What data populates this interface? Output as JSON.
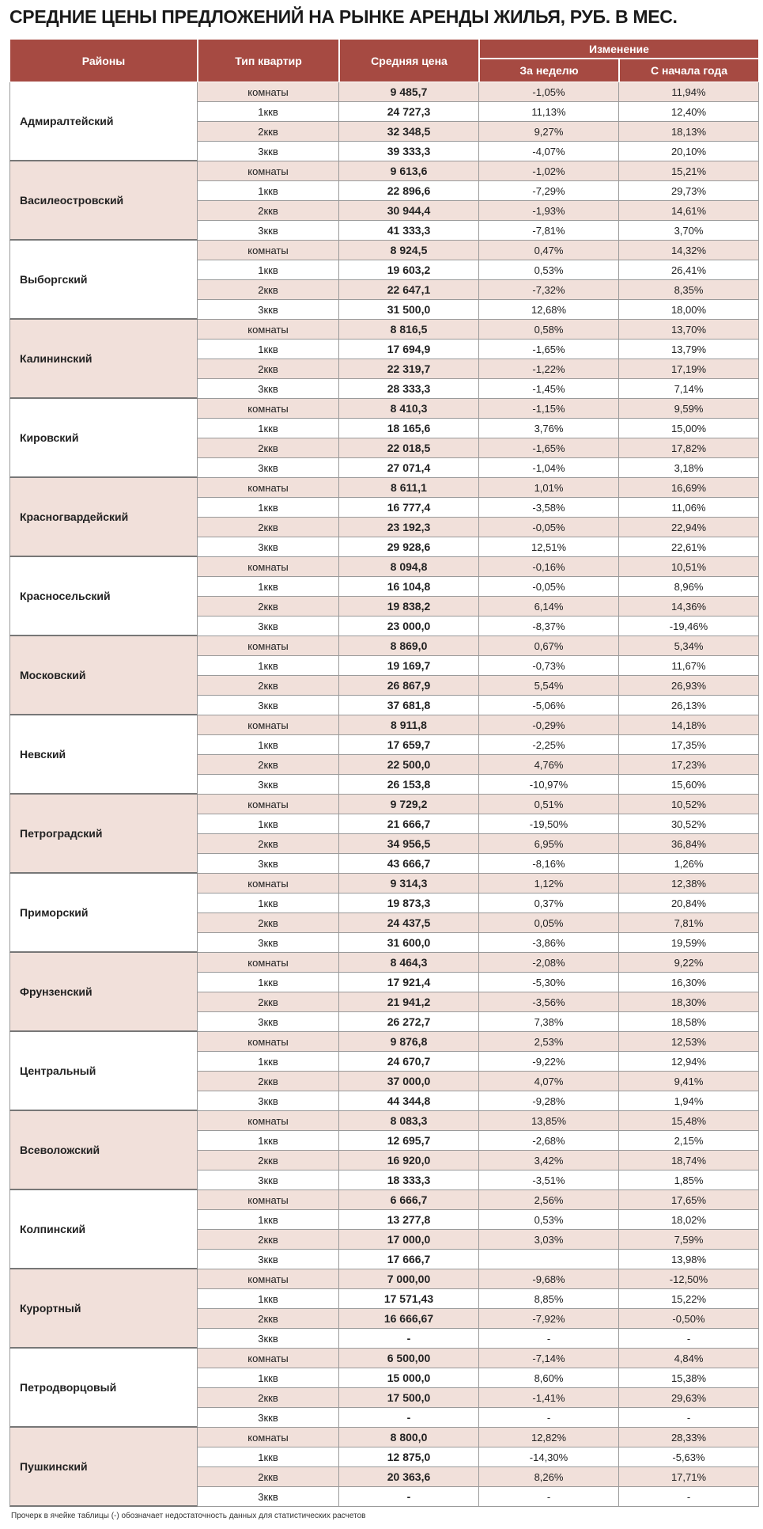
{
  "title": "СРЕДНИЕ ЦЕНЫ ПРЕДЛОЖЕНИЙ НА РЫНКЕ АРЕНДЫ ЖИЛЬЯ, РУБ. В МЕС.",
  "header": {
    "district": "Районы",
    "type": "Тип квартир",
    "price": "Средняя цена",
    "change": "Изменение",
    "week": "За неделю",
    "year": "С начала года"
  },
  "districts": [
    {
      "name": "Адмиралтейский",
      "rows": [
        {
          "type": "комнаты",
          "price": "9 485,7",
          "week": "-1,05%",
          "year": "11,94%"
        },
        {
          "type": "1ккв",
          "price": "24 727,3",
          "week": "11,13%",
          "year": "12,40%"
        },
        {
          "type": "2ккв",
          "price": "32 348,5",
          "week": "9,27%",
          "year": "18,13%"
        },
        {
          "type": "3ккв",
          "price": "39 333,3",
          "week": "-4,07%",
          "year": "20,10%"
        }
      ]
    },
    {
      "name": "Василеостровский",
      "rows": [
        {
          "type": "комнаты",
          "price": "9 613,6",
          "week": "-1,02%",
          "year": "15,21%"
        },
        {
          "type": "1ккв",
          "price": "22 896,6",
          "week": "-7,29%",
          "year": "29,73%"
        },
        {
          "type": "2ккв",
          "price": "30 944,4",
          "week": "-1,93%",
          "year": "14,61%"
        },
        {
          "type": "3ккв",
          "price": "41 333,3",
          "week": "-7,81%",
          "year": "3,70%"
        }
      ]
    },
    {
      "name": "Выборгский",
      "rows": [
        {
          "type": "комнаты",
          "price": "8 924,5",
          "week": "0,47%",
          "year": "14,32%"
        },
        {
          "type": "1ккв",
          "price": "19 603,2",
          "week": "0,53%",
          "year": "26,41%"
        },
        {
          "type": "2ккв",
          "price": "22 647,1",
          "week": "-7,32%",
          "year": "8,35%"
        },
        {
          "type": "3ккв",
          "price": "31 500,0",
          "week": "12,68%",
          "year": "18,00%"
        }
      ]
    },
    {
      "name": "Калининский",
      "rows": [
        {
          "type": "комнаты",
          "price": "8 816,5",
          "week": "0,58%",
          "year": "13,70%"
        },
        {
          "type": "1ккв",
          "price": "17 694,9",
          "week": "-1,65%",
          "year": "13,79%"
        },
        {
          "type": "2ккв",
          "price": "22 319,7",
          "week": "-1,22%",
          "year": "17,19%"
        },
        {
          "type": "3ккв",
          "price": "28 333,3",
          "week": "-1,45%",
          "year": "7,14%"
        }
      ]
    },
    {
      "name": "Кировский",
      "rows": [
        {
          "type": "комнаты",
          "price": "8 410,3",
          "week": "-1,15%",
          "year": "9,59%"
        },
        {
          "type": "1ккв",
          "price": "18 165,6",
          "week": "3,76%",
          "year": "15,00%"
        },
        {
          "type": "2ккв",
          "price": "22 018,5",
          "week": "-1,65%",
          "year": "17,82%"
        },
        {
          "type": "3ккв",
          "price": "27 071,4",
          "week": "-1,04%",
          "year": "3,18%"
        }
      ]
    },
    {
      "name": "Красногвардейский",
      "rows": [
        {
          "type": "комнаты",
          "price": "8 611,1",
          "week": "1,01%",
          "year": "16,69%"
        },
        {
          "type": "1ккв",
          "price": "16 777,4",
          "week": "-3,58%",
          "year": "11,06%"
        },
        {
          "type": "2ккв",
          "price": "23 192,3",
          "week": "-0,05%",
          "year": "22,94%"
        },
        {
          "type": "3ккв",
          "price": "29 928,6",
          "week": "12,51%",
          "year": "22,61%"
        }
      ]
    },
    {
      "name": "Красносельский",
      "rows": [
        {
          "type": "комнаты",
          "price": "8 094,8",
          "week": "-0,16%",
          "year": "10,51%"
        },
        {
          "type": "1ккв",
          "price": "16 104,8",
          "week": "-0,05%",
          "year": "8,96%"
        },
        {
          "type": "2ккв",
          "price": "19 838,2",
          "week": "6,14%",
          "year": "14,36%"
        },
        {
          "type": "3ккв",
          "price": "23 000,0",
          "week": "-8,37%",
          "year": "-19,46%"
        }
      ]
    },
    {
      "name": "Московский",
      "rows": [
        {
          "type": "комнаты",
          "price": "8 869,0",
          "week": "0,67%",
          "year": "5,34%"
        },
        {
          "type": "1ккв",
          "price": "19 169,7",
          "week": "-0,73%",
          "year": "11,67%"
        },
        {
          "type": "2ккв",
          "price": "26 867,9",
          "week": "5,54%",
          "year": "26,93%"
        },
        {
          "type": "3ккв",
          "price": "37 681,8",
          "week": "-5,06%",
          "year": "26,13%"
        }
      ]
    },
    {
      "name": "Невский",
      "rows": [
        {
          "type": "комнаты",
          "price": "8 911,8",
          "week": "-0,29%",
          "year": "14,18%"
        },
        {
          "type": "1ккв",
          "price": "17 659,7",
          "week": "-2,25%",
          "year": "17,35%"
        },
        {
          "type": "2ккв",
          "price": "22 500,0",
          "week": "4,76%",
          "year": "17,23%"
        },
        {
          "type": "3ккв",
          "price": "26 153,8",
          "week": "-10,97%",
          "year": "15,60%"
        }
      ]
    },
    {
      "name": "Петроградский",
      "rows": [
        {
          "type": "комнаты",
          "price": "9 729,2",
          "week": "0,51%",
          "year": "10,52%"
        },
        {
          "type": "1ккв",
          "price": "21 666,7",
          "week": "-19,50%",
          "year": "30,52%"
        },
        {
          "type": "2ккв",
          "price": "34 956,5",
          "week": "6,95%",
          "year": "36,84%"
        },
        {
          "type": "3ккв",
          "price": "43 666,7",
          "week": "-8,16%",
          "year": "1,26%"
        }
      ]
    },
    {
      "name": "Приморский",
      "rows": [
        {
          "type": "комнаты",
          "price": "9 314,3",
          "week": "1,12%",
          "year": "12,38%"
        },
        {
          "type": "1ккв",
          "price": "19 873,3",
          "week": "0,37%",
          "year": "20,84%"
        },
        {
          "type": "2ккв",
          "price": "24 437,5",
          "week": "0,05%",
          "year": "7,81%"
        },
        {
          "type": "3ккв",
          "price": "31 600,0",
          "week": "-3,86%",
          "year": "19,59%"
        }
      ]
    },
    {
      "name": "Фрунзенский",
      "rows": [
        {
          "type": "комнаты",
          "price": "8 464,3",
          "week": "-2,08%",
          "year": "9,22%"
        },
        {
          "type": "1ккв",
          "price": "17 921,4",
          "week": "-5,30%",
          "year": "16,30%"
        },
        {
          "type": "2ккв",
          "price": "21 941,2",
          "week": "-3,56%",
          "year": "18,30%"
        },
        {
          "type": "3ккв",
          "price": "26 272,7",
          "week": "7,38%",
          "year": "18,58%"
        }
      ]
    },
    {
      "name": "Центральный",
      "rows": [
        {
          "type": "комнаты",
          "price": "9 876,8",
          "week": "2,53%",
          "year": "12,53%"
        },
        {
          "type": "1ккв",
          "price": "24 670,7",
          "week": "-9,22%",
          "year": "12,94%"
        },
        {
          "type": "2ккв",
          "price": "37 000,0",
          "week": "4,07%",
          "year": "9,41%"
        },
        {
          "type": "3ккв",
          "price": "44 344,8",
          "week": "-9,28%",
          "year": "1,94%"
        }
      ]
    },
    {
      "name": "Всеволожский",
      "rows": [
        {
          "type": "комнаты",
          "price": "8 083,3",
          "week": "13,85%",
          "year": "15,48%"
        },
        {
          "type": "1ккв",
          "price": "12 695,7",
          "week": "-2,68%",
          "year": "2,15%"
        },
        {
          "type": "2ккв",
          "price": "16 920,0",
          "week": "3,42%",
          "year": "18,74%"
        },
        {
          "type": "3ккв",
          "price": "18 333,3",
          "week": "-3,51%",
          "year": "1,85%"
        }
      ]
    },
    {
      "name": "Колпинский",
      "rows": [
        {
          "type": "комнаты",
          "price": "6 666,7",
          "week": "2,56%",
          "year": "17,65%"
        },
        {
          "type": "1ккв",
          "price": "13 277,8",
          "week": "0,53%",
          "year": "18,02%"
        },
        {
          "type": "2ккв",
          "price": "17 000,0",
          "week": "3,03%",
          "year": "7,59%"
        },
        {
          "type": "3ккв",
          "price": "17 666,7",
          "year": "13,98%"
        }
      ]
    },
    {
      "name": "Курортный",
      "rows": [
        {
          "type": "комнаты",
          "price": "7 000,00",
          "week": "-9,68%",
          "year": "-12,50%"
        },
        {
          "type": "1ккв",
          "price": "17 571,43",
          "week": "8,85%",
          "year": "15,22%"
        },
        {
          "type": "2ккв",
          "price": "16 666,67",
          "week": "-7,92%",
          "year": "-0,50%"
        },
        {
          "type": "3ккв",
          "price": "-",
          "week": "-",
          "year": "-"
        }
      ]
    },
    {
      "name": "Петродворцовый",
      "rows": [
        {
          "type": "комнаты",
          "price": "6 500,00",
          "week": "-7,14%",
          "year": "4,84%"
        },
        {
          "type": "1ккв",
          "price": "15 000,0",
          "week": "8,60%",
          "year": "15,38%"
        },
        {
          "type": "2ккв",
          "price": "17 500,0",
          "week": "-1,41%",
          "year": "29,63%"
        },
        {
          "type": "3ккв",
          "price": "-",
          "week": "-",
          "year": "-"
        }
      ]
    },
    {
      "name": "Пушкинский",
      "rows": [
        {
          "type": "комнаты",
          "price": "8 800,0",
          "week": "12,82%",
          "year": "28,33%"
        },
        {
          "type": "1ккв",
          "price": "12 875,0",
          "week": "-14,30%",
          "year": "-5,63%"
        },
        {
          "type": "2ккв",
          "price": "20 363,6",
          "week": "8,26%",
          "year": "17,71%"
        },
        {
          "type": "3ккв",
          "price": "-",
          "week": "-",
          "year": "-"
        }
      ]
    }
  ],
  "footnote": "Прочерк в ячейке таблицы (-) обозначает недостаточность данных для статистических расчетов"
}
